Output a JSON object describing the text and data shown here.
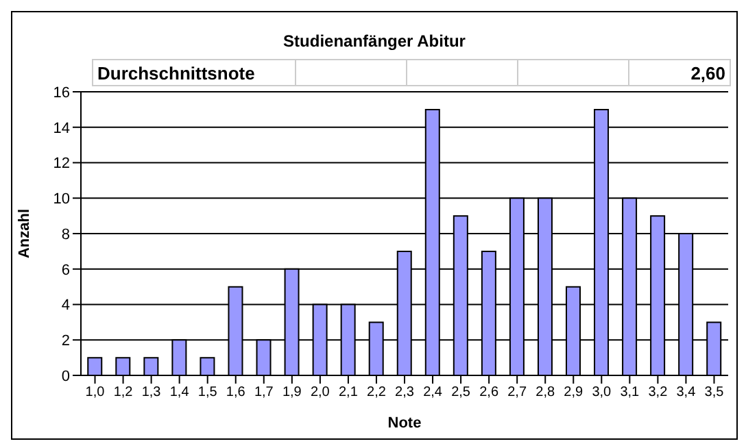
{
  "chart_data": {
    "type": "bar",
    "title": "Studienanfänger Abitur",
    "xlabel": "Note",
    "ylabel": "Anzahl",
    "categories": [
      "1,0",
      "1,2",
      "1,3",
      "1,4",
      "1,5",
      "1,6",
      "1,7",
      "1,9",
      "2,0",
      "2,1",
      "2,2",
      "2,3",
      "2,4",
      "2,5",
      "2,6",
      "2,7",
      "2,8",
      "2,9",
      "3,0",
      "3,1",
      "3,2",
      "3,4",
      "3,5"
    ],
    "values": [
      1,
      1,
      1,
      2,
      1,
      5,
      2,
      6,
      4,
      4,
      3,
      7,
      15,
      9,
      7,
      10,
      10,
      5,
      15,
      10,
      9,
      8,
      3
    ],
    "color": "#9999ff",
    "ylim": [
      0,
      16
    ],
    "yticks": [
      0,
      2,
      4,
      6,
      8,
      10,
      12,
      14,
      16
    ],
    "grid": "y",
    "annotations": [
      "Durchschnittsnote",
      "2,60"
    ]
  }
}
